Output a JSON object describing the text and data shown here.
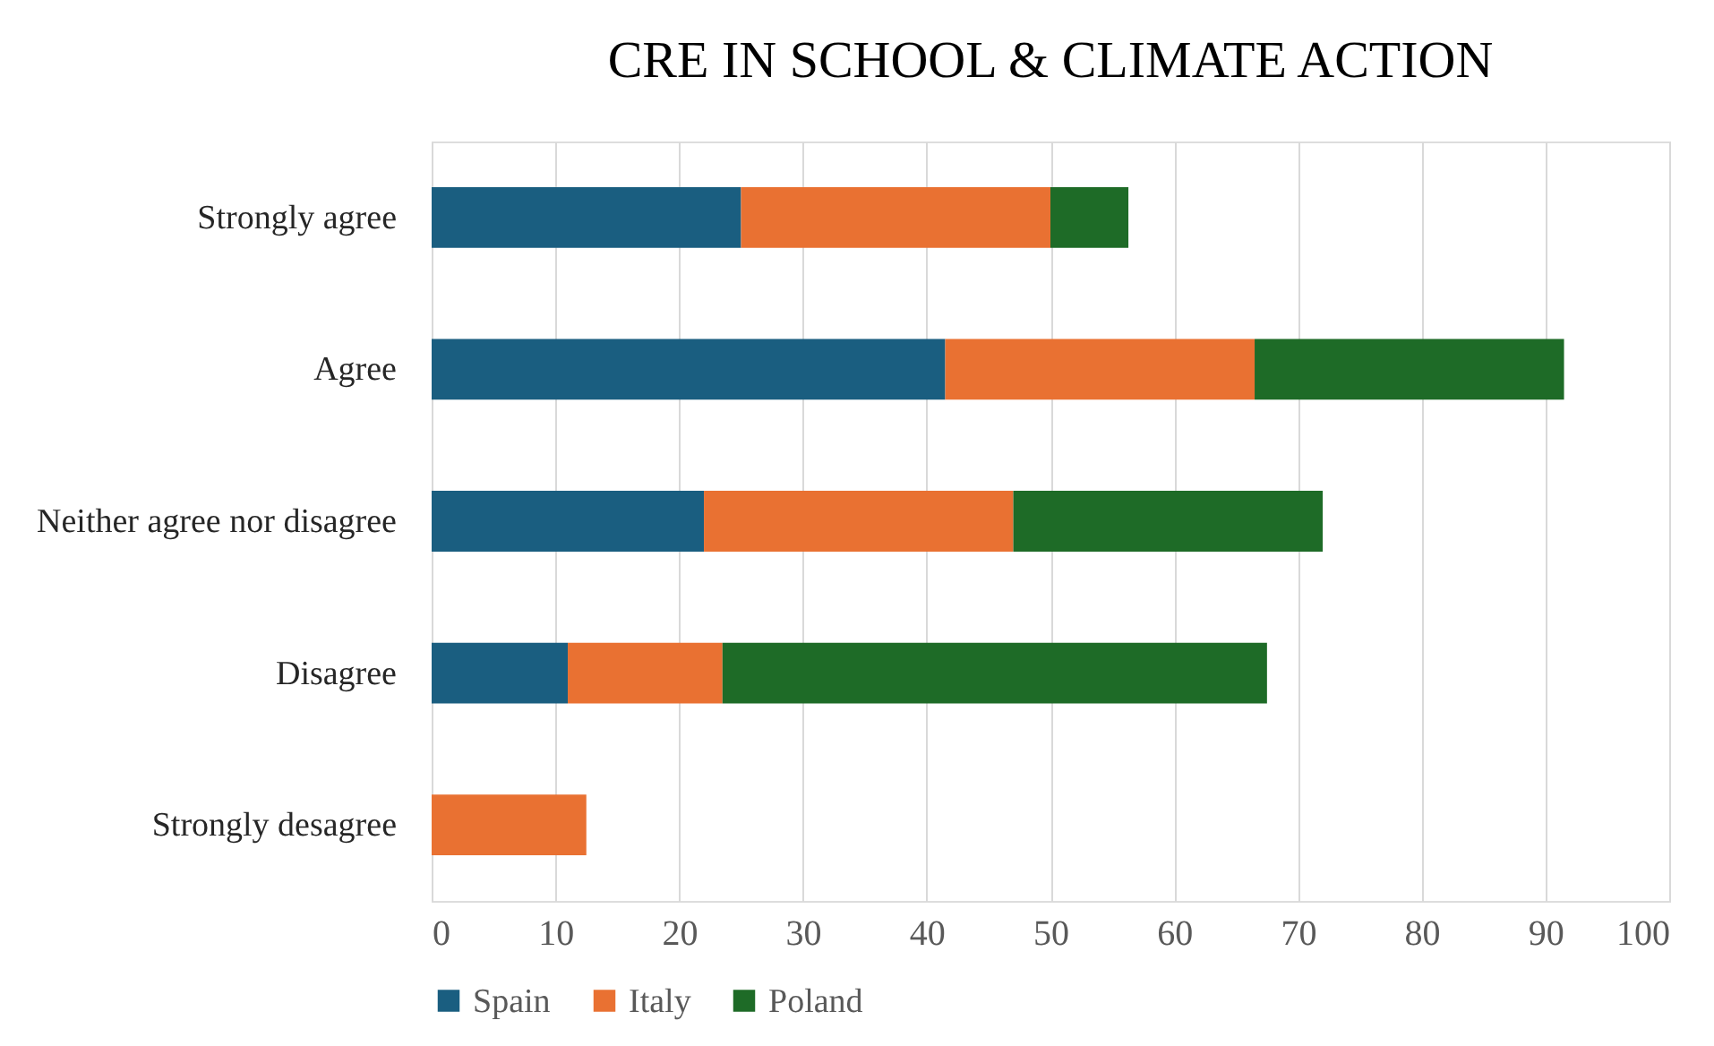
{
  "chart_data": {
    "type": "bar",
    "title": "CRE IN SCHOOL & CLIMATE ACTION",
    "orientation": "horizontal",
    "stacked": true,
    "categories": [
      "Strongly agree",
      "Agree",
      "Neither agree nor disagree",
      "Disagree",
      "Strongly desagree"
    ],
    "series": [
      {
        "name": "Spain",
        "color": "#1a5e80",
        "values": [
          25,
          41.5,
          22,
          11,
          null
        ]
      },
      {
        "name": "Italy",
        "color": "#e97132",
        "values": [
          25,
          25,
          25,
          12.5,
          12.5
        ]
      },
      {
        "name": "Poland",
        "color": "#1e6b27",
        "values": [
          6.3,
          25,
          25,
          44,
          null
        ]
      }
    ],
    "xlim": [
      0,
      100
    ],
    "xticks": [
      0,
      10,
      20,
      30,
      40,
      50,
      60,
      70,
      80,
      90,
      100
    ],
    "grid": "x",
    "legend": "bottom"
  }
}
